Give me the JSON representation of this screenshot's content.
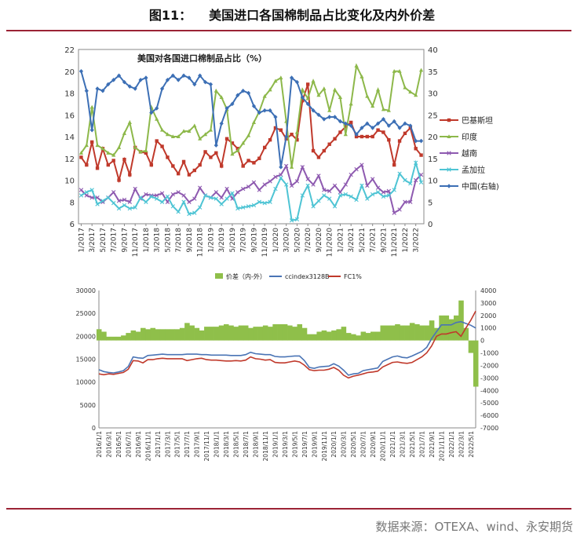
{
  "figure": {
    "number": "图11：",
    "title": "美国进口各国棉制品占比变化及内外价差",
    "source": "数据来源：OTEXA、wind、永安期货"
  },
  "chart_data": [
    {
      "type": "line",
      "title": "美国对各国进口棉制品占比（%）",
      "x": [
        "1/2017",
        "2/2017",
        "3/2017",
        "4/2017",
        "5/2017",
        "6/2017",
        "7/2017",
        "8/2017",
        "9/2017",
        "10/2017",
        "11/2017",
        "12/2017",
        "1/2018",
        "2/2018",
        "3/2018",
        "4/2018",
        "5/2018",
        "6/2018",
        "7/2018",
        "8/2018",
        "9/2018",
        "10/2018",
        "11/2018",
        "12/2018",
        "1/2019",
        "2/2019",
        "3/2019",
        "4/2019",
        "5/2019",
        "6/2019",
        "7/2019",
        "8/2019",
        "9/2019",
        "10/2019",
        "11/2019",
        "12/2019",
        "1/2020",
        "2/2020",
        "3/2020",
        "4/2020",
        "5/2020",
        "6/2020",
        "7/2020",
        "8/2020",
        "9/2020",
        "10/2020",
        "11/2020",
        "12/2020",
        "1/2021",
        "2/2021",
        "3/2021",
        "4/2021",
        "5/2021",
        "6/2021",
        "7/2021",
        "8/2021",
        "9/2021",
        "10/2021",
        "11/2021",
        "12/2021",
        "1/2022",
        "2/2022",
        "3/2022",
        "4/2022"
      ],
      "x_tick_labels": [
        "1/2017",
        "3/2017",
        "5/2017",
        "7/2017",
        "9/2017",
        "11/2017",
        "1/2018",
        "3/2018",
        "5/2018",
        "7/2018",
        "9/2018",
        "11/2018",
        "1/2019",
        "3/2019",
        "5/2019",
        "7/2019",
        "9/2019",
        "11/2019",
        "1/2020",
        "3/2020",
        "5/2020",
        "7/2020",
        "9/2020",
        "11/2020",
        "1/2021",
        "3/2021",
        "5/2021",
        "7/2021",
        "9/2021",
        "11/2021",
        "1/2022",
        "3/2022"
      ],
      "ylim_left": [
        6,
        22
      ],
      "yticks_left": [
        6,
        8,
        10,
        12,
        14,
        16,
        18,
        20,
        22
      ],
      "ylim_right": [
        0,
        40
      ],
      "yticks_right": [
        0,
        5,
        10,
        15,
        20,
        25,
        30,
        35,
        40
      ],
      "legend_position": "right",
      "series": [
        {
          "name": "巴基斯坦",
          "color": "#c0392b",
          "marker": "square",
          "axis": "left",
          "values": [
            12.1,
            11.4,
            13.5,
            11.1,
            12.9,
            11.4,
            11.8,
            10.0,
            11.9,
            10.5,
            13.0,
            12.6,
            12.5,
            11.4,
            13.6,
            13.1,
            12.1,
            11.3,
            10.6,
            11.7,
            10.5,
            10.9,
            11.4,
            12.6,
            12.1,
            12.5,
            11.3,
            13.8,
            13.4,
            12.9,
            11.3,
            11.8,
            11.6,
            12.0,
            13.0,
            13.7,
            14.8,
            14.6,
            13.8,
            14.2,
            13.7,
            17.3,
            18.8,
            12.7,
            12.1,
            12.7,
            13.3,
            13.8,
            14.4,
            14.9,
            15.3,
            14.0,
            14.0,
            14.0,
            14.0,
            14.6,
            14.4,
            13.7,
            11.4,
            13.6,
            14.3,
            14.8,
            12.9,
            12.3
          ]
        },
        {
          "name": "印度",
          "color": "#8db84a",
          "marker": "triangle",
          "axis": "left",
          "values": [
            12.5,
            13.2,
            16.7,
            13.2,
            12.9,
            12.5,
            12.3,
            13.0,
            14.3,
            15.3,
            13.0,
            12.6,
            12.7,
            16.7,
            15.6,
            14.6,
            14.2,
            14.0,
            14.0,
            14.5,
            14.5,
            15.0,
            13.8,
            14.2,
            14.6,
            18.2,
            17.6,
            16.5,
            12.4,
            12.7,
            13.4,
            14.1,
            15.3,
            16.3,
            17.7,
            18.3,
            19.1,
            19.4,
            15.4,
            11.2,
            14.4,
            18.3,
            17.5,
            19.1,
            17.8,
            18.4,
            16.4,
            18.3,
            17.6,
            14.2,
            17.0,
            20.5,
            19.5,
            17.7,
            16.8,
            18.3,
            16.5,
            16.4,
            20.0,
            20.0,
            18.5,
            18.1,
            17.8,
            20.1
          ]
        },
        {
          "name": "越南",
          "color": "#8e5ab0",
          "marker": "x",
          "axis": "left",
          "values": [
            9.1,
            8.6,
            8.4,
            8.4,
            8.0,
            8.4,
            8.9,
            8.1,
            8.2,
            8.0,
            9.2,
            8.3,
            8.7,
            8.6,
            8.6,
            8.8,
            8.0,
            8.7,
            8.9,
            8.6,
            8.0,
            8.3,
            9.3,
            8.6,
            8.4,
            8.9,
            8.4,
            9.2,
            8.3,
            8.9,
            9.2,
            9.4,
            9.8,
            9.1,
            9.6,
            9.9,
            10.3,
            10.5,
            11.3,
            9.5,
            9.9,
            11.2,
            10.1,
            9.6,
            10.4,
            9.1,
            9.0,
            9.5,
            8.9,
            9.6,
            10.5,
            11.0,
            11.4,
            9.5,
            10.1,
            9.3,
            8.9,
            9.0,
            7.0,
            7.3,
            8.0,
            8.0,
            10.0,
            10.5
          ]
        },
        {
          "name": "孟加拉",
          "color": "#4ec4d4",
          "marker": "x",
          "axis": "left",
          "values": [
            8.6,
            8.9,
            9.1,
            7.8,
            8.1,
            8.4,
            7.9,
            7.4,
            7.7,
            7.4,
            7.5,
            8.4,
            8.0,
            8.5,
            8.3,
            8.0,
            8.5,
            7.6,
            7.1,
            8.0,
            6.9,
            7.0,
            7.5,
            8.6,
            8.4,
            8.3,
            7.8,
            8.3,
            8.8,
            7.4,
            7.5,
            7.6,
            7.7,
            8.0,
            7.9,
            8.0,
            9.2,
            10.2,
            9.6,
            6.3,
            6.4,
            8.6,
            9.5,
            7.6,
            8.1,
            8.6,
            8.3,
            7.6,
            8.6,
            8.7,
            8.5,
            8.2,
            9.5,
            8.3,
            8.7,
            8.9,
            8.5,
            8.6,
            9.1,
            10.6,
            10.0,
            9.7,
            11.6,
            9.8
          ]
        },
        {
          "name": "中国(右轴)",
          "color": "#3c6fb5",
          "marker": "diamond",
          "axis": "right",
          "values": [
            35.0,
            30.5,
            21.5,
            31.0,
            30.5,
            32.0,
            33.0,
            34.0,
            32.5,
            31.5,
            31.0,
            33.0,
            33.5,
            25.5,
            26.5,
            31.0,
            33.0,
            34.0,
            33.0,
            34.0,
            33.5,
            32.0,
            34.0,
            32.5,
            32.0,
            18.0,
            23.0,
            26.5,
            27.5,
            29.5,
            30.5,
            30.0,
            27.0,
            25.5,
            26.0,
            26.0,
            24.5,
            13.0,
            20.0,
            33.5,
            32.5,
            29.0,
            27.5,
            26.0,
            25.0,
            24.0,
            24.5,
            24.5,
            23.5,
            23.0,
            22.5,
            20.5,
            22.0,
            23.0,
            22.0,
            23.0,
            24.0,
            22.5,
            23.5,
            22.0,
            23.0,
            22.5,
            19.0,
            19.0
          ]
        }
      ]
    },
    {
      "type": "area",
      "legend": [
        "价差（内-外）",
        "ccindex3128B",
        "FC1%"
      ],
      "colors": {
        "spread": "#8fbf4a",
        "ccindex": "#4a74b5",
        "fc": "#c0392b"
      },
      "ylim_left": [
        0,
        30000
      ],
      "yticks_left": [
        0,
        5000,
        10000,
        15000,
        20000,
        25000,
        30000
      ],
      "ylim_right": [
        -7000,
        4000
      ],
      "yticks_right": [
        -7000,
        -6000,
        -5000,
        -4000,
        -3000,
        -2000,
        -1000,
        0,
        1000,
        2000,
        3000,
        4000
      ],
      "x_tick_labels": [
        "2016/1/1",
        "2016/3/1",
        "2016/5/1",
        "2016/7/1",
        "2016/9/1",
        "2016/11/1",
        "2017/1/1",
        "2017/3/1",
        "2017/5/1",
        "2017/7/1",
        "2017/9/1",
        "2017/11/1",
        "2018/1/1",
        "2018/3/1",
        "2018/5/1",
        "2018/7/1",
        "2018/9/1",
        "2018/11/1",
        "2019/1/1",
        "2019/3/1",
        "2019/5/1",
        "2019/7/1",
        "2019/9/1",
        "2019/11/1",
        "2020/1/1",
        "2020/3/1",
        "2020/5/1",
        "2020/7/1",
        "2020/9/1",
        "2020/11/1",
        "2021/1/1",
        "2021/3/1",
        "2021/5/1",
        "2021/7/1",
        "2021/9/1",
        "2021/11/1",
        "2022/1/1",
        "2022/3/1",
        "2022/5/1"
      ],
      "months": [
        "2016/1",
        "2016/2",
        "2016/3",
        "2016/4",
        "2016/5",
        "2016/6",
        "2016/7",
        "2016/8",
        "2016/9",
        "2016/10",
        "2016/11",
        "2016/12",
        "2017/1",
        "2017/2",
        "2017/3",
        "2017/4",
        "2017/5",
        "2017/6",
        "2017/7",
        "2017/8",
        "2017/9",
        "2017/10",
        "2017/11",
        "2017/12",
        "2018/1",
        "2018/2",
        "2018/3",
        "2018/4",
        "2018/5",
        "2018/6",
        "2018/7",
        "2018/8",
        "2018/9",
        "2018/10",
        "2018/11",
        "2018/12",
        "2019/1",
        "2019/2",
        "2019/3",
        "2019/4",
        "2019/5",
        "2019/6",
        "2019/7",
        "2019/8",
        "2019/9",
        "2019/10",
        "2019/11",
        "2019/12",
        "2020/1",
        "2020/2",
        "2020/3",
        "2020/4",
        "2020/5",
        "2020/6",
        "2020/7",
        "2020/8",
        "2020/9",
        "2020/10",
        "2020/11",
        "2020/12",
        "2021/1",
        "2021/2",
        "2021/3",
        "2021/4",
        "2021/5",
        "2021/6",
        "2021/7",
        "2021/8",
        "2021/9",
        "2021/10",
        "2021/11",
        "2021/12",
        "2022/1",
        "2022/2",
        "2022/3",
        "2022/4",
        "2022/5",
        "2022/6"
      ],
      "ccindex": [
        12700,
        12300,
        12100,
        12000,
        12200,
        12500,
        13400,
        15500,
        15300,
        15200,
        15800,
        15900,
        16000,
        16100,
        16000,
        16000,
        16000,
        16000,
        16100,
        16100,
        16100,
        16000,
        16000,
        15900,
        15900,
        15900,
        15900,
        15800,
        15800,
        15800,
        16000,
        16500,
        16200,
        16100,
        16000,
        16000,
        15600,
        15500,
        15500,
        15600,
        15700,
        15700,
        14700,
        13200,
        13000,
        13300,
        13400,
        13500,
        14000,
        13500,
        12600,
        11500,
        11800,
        11900,
        12500,
        12700,
        12900,
        13100,
        14500,
        15000,
        15500,
        15700,
        15400,
        15300,
        15700,
        16200,
        16700,
        17600,
        19500,
        21000,
        22500,
        22500,
        22500,
        23000,
        23200,
        22800,
        22400,
        21800
      ],
      "fc": [
        11800,
        11600,
        11800,
        11700,
        11900,
        12100,
        12800,
        14700,
        14600,
        14200,
        14900,
        14900,
        15100,
        15200,
        15100,
        15100,
        15100,
        15100,
        14700,
        14900,
        15100,
        15200,
        14900,
        14800,
        14800,
        14700,
        14600,
        14600,
        14700,
        14600,
        14800,
        15500,
        15100,
        15000,
        14800,
        14900,
        14300,
        14200,
        14200,
        14400,
        14600,
        14400,
        13700,
        12700,
        12500,
        12600,
        12600,
        12800,
        13200,
        12600,
        11500,
        10900,
        11300,
        11500,
        11800,
        12100,
        12200,
        12400,
        13300,
        13800,
        14300,
        14400,
        14200,
        14100,
        14300,
        14900,
        15500,
        16400,
        17900,
        20000,
        20500,
        20500,
        20800,
        21000,
        20000,
        21800,
        23500,
        25500
      ],
      "spread": [
        900,
        700,
        300,
        300,
        300,
        400,
        600,
        800,
        700,
        1000,
        900,
        1000,
        900,
        900,
        900,
        900,
        900,
        1000,
        1400,
        1200,
        1000,
        800,
        1100,
        1100,
        1100,
        1200,
        1300,
        1200,
        1100,
        1200,
        1200,
        1000,
        1100,
        1100,
        1200,
        1100,
        1300,
        1300,
        1300,
        1200,
        1100,
        1300,
        1000,
        500,
        500,
        700,
        800,
        700,
        800,
        900,
        1100,
        600,
        500,
        400,
        700,
        600,
        700,
        700,
        1200,
        1200,
        1200,
        1300,
        1200,
        1200,
        1400,
        1300,
        1200,
        1200,
        1600,
        1000,
        2000,
        2000,
        1700,
        2000,
        3200,
        1000,
        -1000,
        -3700
      ]
    }
  ]
}
